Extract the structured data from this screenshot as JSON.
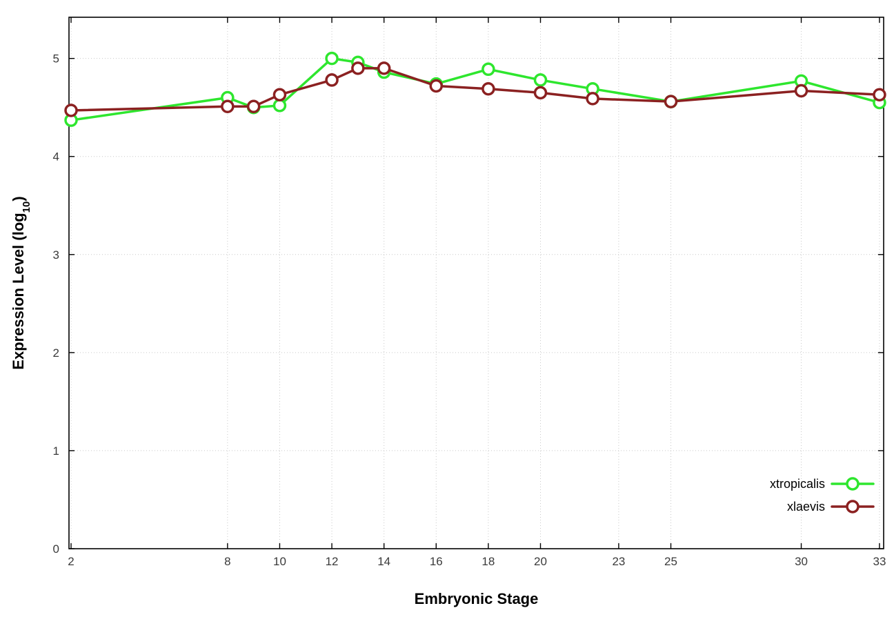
{
  "chart_data": {
    "type": "line",
    "title": "",
    "xlabel": "Embryonic Stage",
    "ylabel": {
      "text": "Expression Level (log",
      "sub": "10",
      "suffix": ")"
    },
    "x_tick_labels": [
      2,
      8,
      10,
      12,
      14,
      16,
      18,
      20,
      23,
      25,
      30,
      33
    ],
    "y_tick_labels": [
      0,
      1,
      2,
      3,
      4,
      5
    ],
    "xlim": [
      1.92,
      33.16
    ],
    "ylim": [
      0,
      5.42
    ],
    "grid": true,
    "legend_position": "right-lower",
    "x": [
      2,
      8,
      9,
      10,
      12,
      13,
      14,
      16,
      18,
      20,
      22,
      25,
      30,
      33
    ],
    "series": [
      {
        "name": "xtropicalis",
        "color": "#2ee62e",
        "values": [
          4.37,
          4.6,
          4.5,
          4.52,
          5.0,
          4.96,
          4.86,
          4.74,
          4.89,
          4.78,
          4.69,
          4.56,
          4.77,
          4.55
        ]
      },
      {
        "name": "xlaevis",
        "color": "#8b2121",
        "values": [
          4.47,
          4.51,
          4.51,
          4.63,
          4.78,
          4.9,
          4.9,
          4.72,
          4.69,
          4.65,
          4.59,
          4.56,
          4.67,
          4.63
        ]
      }
    ],
    "style": {
      "background": "#ffffff",
      "grid_color": "#c8c8c8",
      "axis_color": "#000000",
      "marker": "open-circle",
      "line_width": 3.5,
      "marker_radius": 8
    }
  }
}
